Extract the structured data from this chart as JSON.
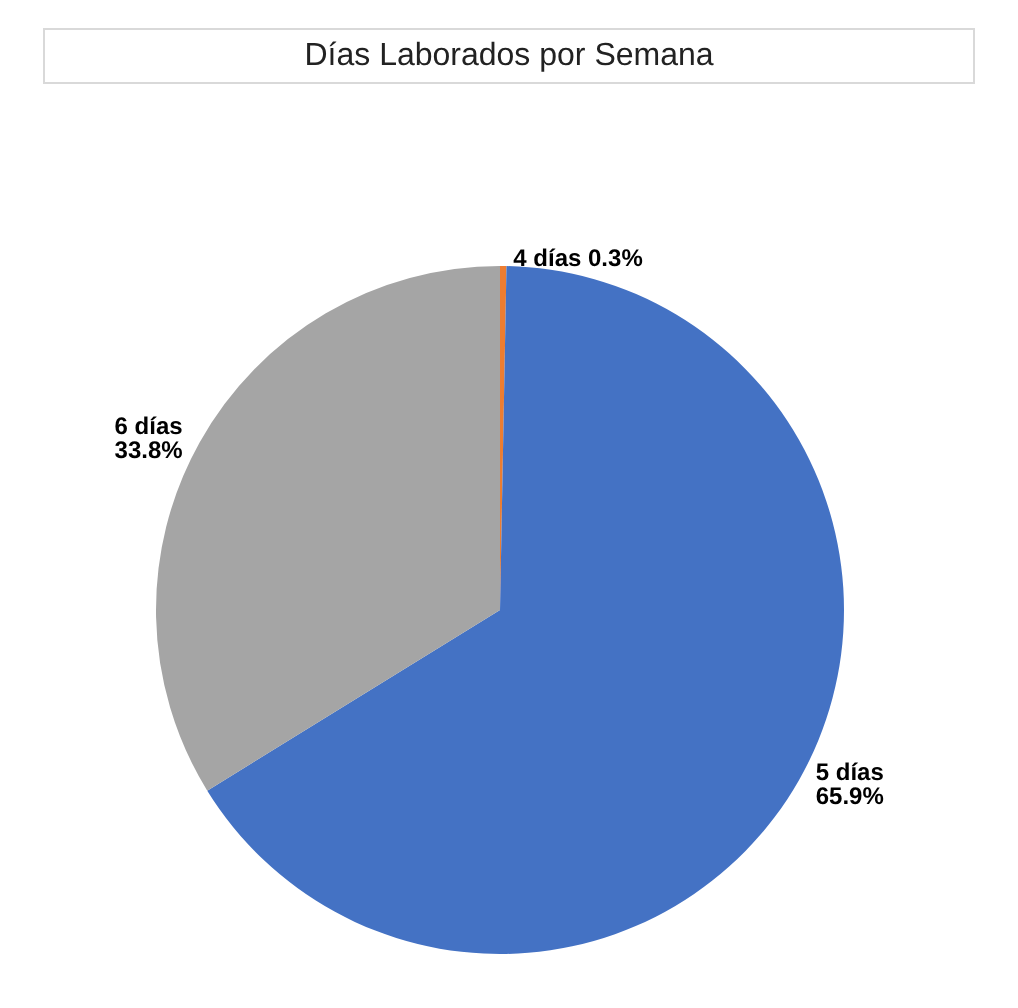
{
  "chart_data": {
    "type": "pie",
    "title": "Días Laborados por Semana",
    "categories": [
      "4 días",
      "5 días",
      "6 días"
    ],
    "values": [
      0.3,
      65.9,
      33.8
    ],
    "value_labels": [
      "0.3%",
      "65.9%",
      "33.8%"
    ],
    "colors": [
      "#ed7d31",
      "#4472c4",
      "#a5a5a5"
    ],
    "legend": false
  }
}
